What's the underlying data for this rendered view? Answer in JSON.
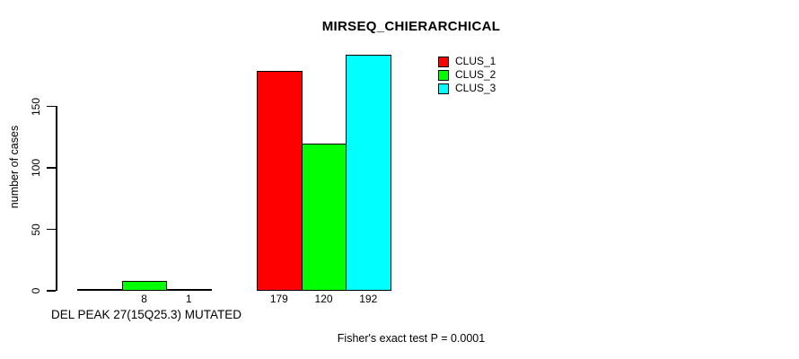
{
  "page": {
    "background": "#ffffff"
  },
  "chart_data": {
    "type": "bar",
    "title": "MIRSEQ_CHIERARCHICAL",
    "xlabel": "DEL PEAK 27(15Q25.3) MUTATED",
    "ylabel": "number of cases",
    "ylim": [
      0,
      150
    ],
    "yticks": [
      0,
      50,
      100,
      150
    ],
    "grid": false,
    "legend_position": "top-right",
    "categories": [
      "DEL PEAK 27(15Q25.3) MUTATED",
      ""
    ],
    "series": [
      {
        "name": "CLUS_1",
        "color": "#ff0000",
        "values": [
          0,
          179
        ]
      },
      {
        "name": "CLUS_2",
        "color": "#00ff00",
        "values": [
          8,
          120
        ]
      },
      {
        "name": "CLUS_3",
        "color": "#00ffff",
        "values": [
          1,
          192
        ]
      }
    ],
    "bar_value_labels": [
      [
        "",
        "8",
        "1"
      ],
      [
        "179",
        "120",
        "192"
      ]
    ],
    "annotation": "Fisher's exact test P = 0.0001"
  },
  "legend": {
    "items": [
      {
        "label": "CLUS_1",
        "color": "#ff0000"
      },
      {
        "label": "CLUS_2",
        "color": "#00ff00"
      },
      {
        "label": "CLUS_3",
        "color": "#00ffff"
      }
    ]
  },
  "footer": {
    "stat_text": "Fisher's exact test P = 0.0001"
  }
}
